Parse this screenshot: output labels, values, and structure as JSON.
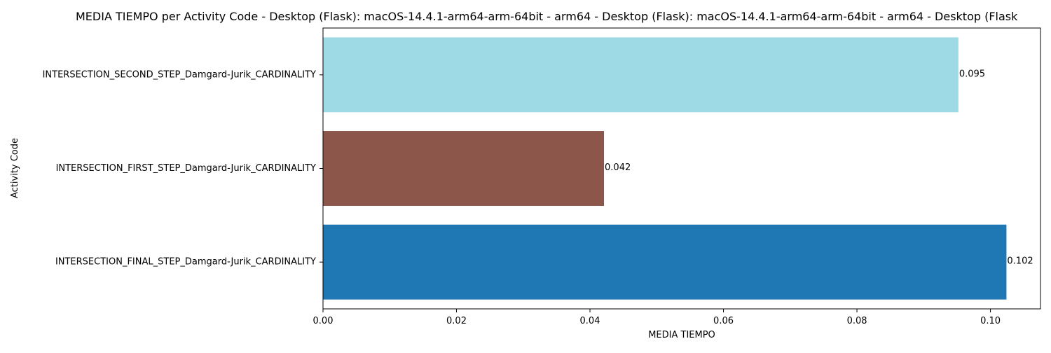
{
  "chart_data": {
    "type": "bar",
    "orientation": "horizontal",
    "title": "MEDIA TIEMPO per Activity Code - Desktop (Flask): macOS-14.4.1-arm64-arm-64bit - arm64 - Desktop (Flask): macOS-14.4.1-arm64-arm-64bit - arm64 - Desktop (Flask",
    "xlabel": "MEDIA TIEMPO",
    "ylabel": "Activity Code",
    "categories": [
      "INTERSECTION_FINAL_STEP_Damgard-Jurik_CARDINALITY",
      "INTERSECTION_FIRST_STEP_Damgard-Jurik_CARDINALITY",
      "INTERSECTION_SECOND_STEP_Damgard-Jurik_CARDINALITY"
    ],
    "values": [
      0.1024,
      0.0421,
      0.0952
    ],
    "value_labels": [
      "0.102",
      "0.042",
      "0.095"
    ],
    "colors": [
      "#1f77b4",
      "#8c564b",
      "#9edae5"
    ],
    "xlim": [
      0,
      0.1075
    ],
    "xticks": [
      0.0,
      0.02,
      0.04,
      0.06,
      0.08,
      0.1
    ],
    "xtick_labels": [
      "0.00",
      "0.02",
      "0.04",
      "0.06",
      "0.08",
      "0.10"
    ],
    "grid": false,
    "legend": "none"
  }
}
